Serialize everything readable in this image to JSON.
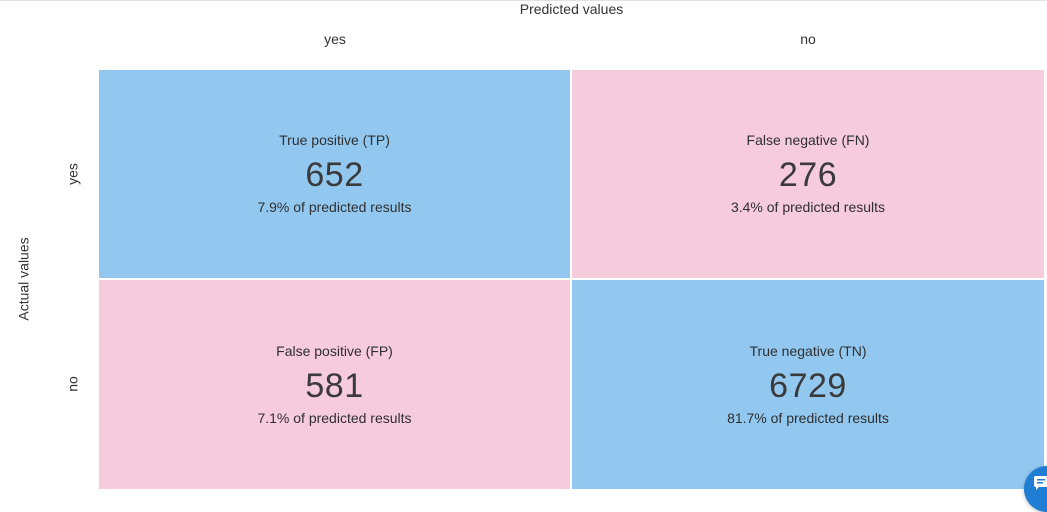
{
  "header": {
    "predicted_title": "Predicted values",
    "columns": [
      "yes",
      "no"
    ]
  },
  "axis": {
    "actual_title": "Actual values",
    "rows": [
      "yes",
      "no"
    ]
  },
  "matrix": {
    "tp": {
      "title": "True positive (TP)",
      "value": "652",
      "pct": "7.9% of predicted results"
    },
    "fn": {
      "title": "False negative (FN)",
      "value": "276",
      "pct": "3.4% of predicted results"
    },
    "fp": {
      "title": "False positive (FP)",
      "value": "581",
      "pct": "7.1% of predicted results"
    },
    "tn": {
      "title": "True negative (TN)",
      "value": "6729",
      "pct": "81.7% of predicted results"
    }
  },
  "colors": {
    "correct": "#92c8f0",
    "incorrect": "#f6cbdc",
    "chat_button": "#1f7ed4"
  },
  "chat": {
    "icon": "chat-icon"
  }
}
